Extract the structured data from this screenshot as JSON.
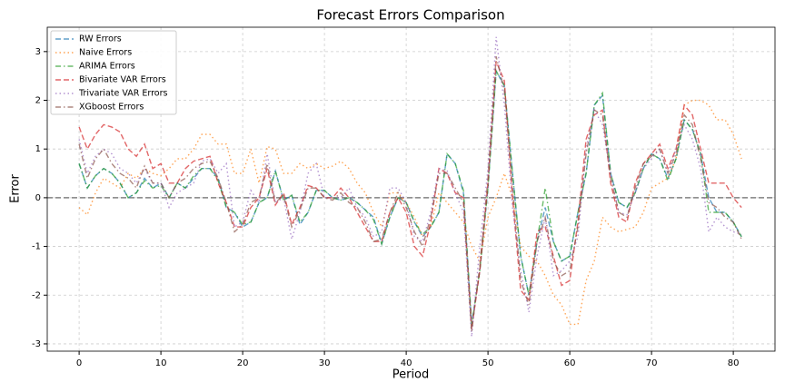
{
  "chart_data": {
    "type": "line",
    "title": "Forecast Errors Comparison",
    "x_label": "Period",
    "y_label": "Error",
    "x": [
      0,
      1,
      2,
      3,
      4,
      5,
      6,
      7,
      8,
      9,
      10,
      11,
      12,
      13,
      14,
      15,
      16,
      17,
      18,
      19,
      20,
      21,
      22,
      23,
      24,
      25,
      26,
      27,
      28,
      29,
      30,
      31,
      32,
      33,
      34,
      35,
      36,
      37,
      38,
      39,
      40,
      41,
      42,
      43,
      44,
      45,
      46,
      47,
      48,
      49,
      50,
      51,
      52,
      53,
      54,
      55,
      56,
      57,
      58,
      59,
      60,
      61,
      62,
      63,
      64,
      65,
      66,
      67,
      68,
      69,
      70,
      71,
      72,
      73,
      74,
      75,
      76,
      77,
      78,
      79,
      80,
      81
    ],
    "series": [
      {
        "name": "RW Errors",
        "color": "#1f77b4",
        "linestyle": "dashed",
        "values": [
          0.7,
          0.2,
          0.45,
          0.6,
          0.5,
          0.3,
          0.0,
          0.1,
          0.4,
          0.2,
          0.3,
          0.0,
          0.3,
          0.2,
          0.4,
          0.6,
          0.6,
          0.4,
          -0.2,
          -0.3,
          -0.6,
          -0.5,
          -0.1,
          0.0,
          0.55,
          -0.05,
          0.05,
          -0.55,
          -0.3,
          0.15,
          0.15,
          0.0,
          -0.05,
          0.0,
          -0.1,
          -0.25,
          -0.4,
          -0.95,
          -0.4,
          0.0,
          -0.1,
          -0.5,
          -0.8,
          -0.6,
          -0.3,
          0.9,
          0.7,
          0.1,
          -2.6,
          -1.5,
          0.2,
          2.6,
          2.3,
          0.5,
          -1.2,
          -2.0,
          -0.9,
          -0.2,
          -0.9,
          -1.3,
          -1.2,
          -0.3,
          0.5,
          1.9,
          2.1,
          0.5,
          -0.1,
          -0.2,
          0.1,
          0.6,
          0.9,
          0.8,
          0.4,
          0.8,
          1.6,
          1.4,
          0.9,
          0.0,
          -0.3,
          -0.3,
          -0.5,
          -0.8
        ]
      },
      {
        "name": "Naive Errors",
        "color": "#ff7f0e",
        "linestyle": "dotted",
        "values": [
          -0.2,
          -0.35,
          0.1,
          0.4,
          0.3,
          0.2,
          0.5,
          0.4,
          0.6,
          0.5,
          0.45,
          0.6,
          0.8,
          0.8,
          1.0,
          1.3,
          1.3,
          1.1,
          1.1,
          0.5,
          0.5,
          1.0,
          0.3,
          1.05,
          1.0,
          0.5,
          0.5,
          0.7,
          0.6,
          0.7,
          0.6,
          0.65,
          0.75,
          0.6,
          0.3,
          0.1,
          -0.3,
          -0.6,
          0.1,
          0.1,
          -0.1,
          -0.4,
          -0.8,
          -0.6,
          0.1,
          -0.1,
          -0.3,
          -0.5,
          -1.0,
          -1.3,
          -0.4,
          0.0,
          0.5,
          0.0,
          -1.0,
          -1.2,
          -1.3,
          -1.6,
          -2.0,
          -2.2,
          -2.6,
          -2.6,
          -1.7,
          -1.3,
          -0.4,
          -0.6,
          -0.7,
          -0.65,
          -0.6,
          -0.3,
          0.2,
          0.3,
          0.4,
          0.8,
          1.9,
          2.0,
          2.0,
          1.9,
          1.6,
          1.6,
          1.3,
          0.8
        ]
      },
      {
        "name": "ARIMA Errors",
        "color": "#2ca02c",
        "linestyle": "dashdot",
        "values": [
          0.7,
          0.2,
          0.45,
          0.6,
          0.5,
          0.3,
          0.0,
          0.1,
          0.35,
          0.2,
          0.25,
          0.0,
          0.3,
          0.2,
          0.45,
          0.6,
          0.6,
          0.35,
          -0.2,
          -0.3,
          -0.55,
          -0.5,
          -0.1,
          0.0,
          0.55,
          -0.05,
          0.05,
          -0.5,
          -0.3,
          0.15,
          0.15,
          0.0,
          -0.05,
          0.0,
          -0.1,
          -0.25,
          -0.45,
          -0.95,
          -0.4,
          0.0,
          -0.1,
          -0.5,
          -0.75,
          -0.6,
          -0.3,
          0.9,
          0.7,
          0.15,
          -2.6,
          -1.5,
          0.2,
          2.6,
          2.3,
          0.5,
          -1.2,
          -2.0,
          -0.9,
          0.2,
          -0.9,
          -1.3,
          -1.2,
          -0.3,
          0.5,
          1.9,
          2.15,
          0.5,
          -0.1,
          -0.2,
          0.1,
          0.6,
          0.9,
          0.8,
          0.35,
          0.8,
          1.6,
          1.4,
          0.9,
          -0.3,
          -0.3,
          -0.3,
          -0.5,
          -0.8
        ]
      },
      {
        "name": "Bivariate VAR Errors",
        "color": "#d62728",
        "linestyle": "dashed",
        "values": [
          1.45,
          1.0,
          1.3,
          1.5,
          1.45,
          1.35,
          1.0,
          0.85,
          1.1,
          0.6,
          0.7,
          0.3,
          0.3,
          0.6,
          0.75,
          0.8,
          0.85,
          0.3,
          -0.1,
          -0.6,
          -0.6,
          -0.2,
          0.0,
          0.6,
          -0.15,
          0.1,
          -0.55,
          -0.2,
          0.25,
          0.2,
          0.0,
          0.0,
          0.2,
          0.0,
          -0.3,
          -0.6,
          -0.9,
          -0.9,
          -0.3,
          0.0,
          -0.3,
          -1.0,
          -1.2,
          -0.5,
          0.6,
          0.5,
          0.1,
          0.0,
          -2.7,
          -1.5,
          0.3,
          2.8,
          2.4,
          0.0,
          -1.9,
          -2.1,
          -0.7,
          -0.6,
          -1.2,
          -1.8,
          -1.7,
          -0.5,
          1.2,
          1.7,
          1.8,
          0.3,
          -0.4,
          -0.5,
          0.3,
          0.7,
          0.9,
          1.1,
          0.6,
          1.0,
          1.9,
          1.7,
          1.0,
          0.3,
          0.3,
          0.3,
          0.0,
          -0.2
        ]
      },
      {
        "name": "Trivariate VAR Errors",
        "color": "#9467bd",
        "linestyle": "dotted",
        "values": [
          1.2,
          0.5,
          0.85,
          1.0,
          0.9,
          0.6,
          0.5,
          0.3,
          0.6,
          0.3,
          0.3,
          -0.2,
          0.1,
          0.2,
          0.3,
          0.75,
          0.8,
          0.5,
          0.7,
          -0.6,
          -0.5,
          0.15,
          -0.1,
          0.9,
          -0.1,
          0.0,
          -0.85,
          -0.3,
          0.5,
          0.7,
          0.0,
          0.0,
          0.0,
          0.2,
          -0.2,
          -0.4,
          -0.8,
          -0.7,
          0.2,
          0.2,
          -0.1,
          -0.8,
          -0.9,
          -0.3,
          0.6,
          0.55,
          0.1,
          -0.3,
          -2.85,
          -1.0,
          0.6,
          3.3,
          1.9,
          -0.2,
          -1.5,
          -2.35,
          -1.2,
          -0.4,
          -1.6,
          -1.5,
          -1.3,
          -0.8,
          1.0,
          1.8,
          1.5,
          0.5,
          -0.3,
          -0.35,
          0.1,
          0.6,
          0.8,
          1.0,
          0.5,
          1.0,
          1.5,
          1.2,
          0.6,
          -0.7,
          -0.4,
          -0.6,
          -0.7,
          -0.75
        ]
      },
      {
        "name": "XGboost Errors",
        "color": "#8c564b",
        "linestyle": "dashdot",
        "values": [
          1.1,
          0.4,
          0.8,
          1.0,
          0.7,
          0.5,
          0.4,
          0.2,
          0.65,
          0.3,
          0.3,
          0.0,
          0.3,
          0.4,
          0.6,
          0.7,
          0.75,
          0.4,
          -0.1,
          -0.7,
          -0.55,
          -0.1,
          0.0,
          0.7,
          -0.1,
          0.05,
          -0.6,
          -0.25,
          0.2,
          0.2,
          0.0,
          -0.05,
          0.1,
          -0.1,
          -0.2,
          -0.5,
          -0.9,
          -0.85,
          -0.3,
          0.1,
          -0.2,
          -0.7,
          -1.0,
          -0.4,
          0.5,
          0.5,
          0.2,
          -0.1,
          -2.75,
          -1.4,
          0.4,
          2.9,
          2.2,
          0.2,
          -1.7,
          -2.2,
          -0.9,
          -0.4,
          -1.3,
          -1.6,
          -1.5,
          -0.6,
          0.9,
          1.8,
          1.7,
          0.4,
          -0.3,
          -0.4,
          0.2,
          0.7,
          0.85,
          1.0,
          0.5,
          0.9,
          1.7,
          1.5,
          0.8,
          -0.1,
          -0.2,
          -0.4,
          -0.5,
          -0.85
        ]
      }
    ],
    "xlim": [
      -3.9,
      85.1
    ],
    "ylim": [
      -3.15,
      3.5
    ],
    "xticks": [
      0,
      10,
      20,
      30,
      40,
      50,
      60,
      70,
      80
    ],
    "yticks": [
      -3,
      -2,
      -1,
      0,
      1,
      2,
      3
    ],
    "grid": true,
    "legend": "upper left",
    "reference_line": {
      "y": 0,
      "color": "#808080",
      "linestyle": "dashed"
    }
  }
}
